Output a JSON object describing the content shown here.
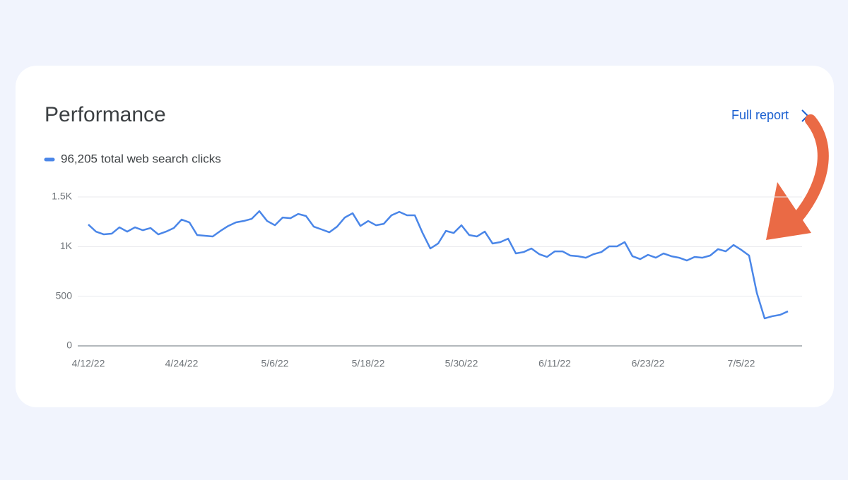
{
  "header": {
    "title": "Performance",
    "link": "Full report"
  },
  "chart_data": {
    "type": "line",
    "categories": [
      "4/12/22",
      null,
      null,
      null,
      null,
      null,
      null,
      null,
      null,
      null,
      null,
      null,
      "4/24/22",
      null,
      null,
      null,
      null,
      null,
      null,
      null,
      null,
      null,
      null,
      null,
      "5/6/22",
      null,
      null,
      null,
      null,
      null,
      null,
      null,
      null,
      null,
      null,
      null,
      "5/18/22",
      null,
      null,
      null,
      null,
      null,
      null,
      null,
      null,
      null,
      null,
      null,
      "5/30/22",
      null,
      null,
      null,
      null,
      null,
      null,
      null,
      null,
      null,
      null,
      null,
      "6/11/22",
      null,
      null,
      null,
      null,
      null,
      null,
      null,
      null,
      null,
      null,
      null,
      "6/23/22",
      null,
      null,
      null,
      null,
      null,
      null,
      null,
      null,
      null,
      null,
      null,
      "7/5/22",
      null,
      null,
      null,
      null,
      null,
      null
    ],
    "series": [
      {
        "name": "96,205 total web search clicks",
        "color": "#4a86e8",
        "values": [
          1222,
          1150,
          1123,
          1130,
          1194,
          1151,
          1194,
          1165,
          1187,
          1123,
          1151,
          1187,
          1272,
          1244,
          1116,
          1109,
          1102,
          1158,
          1208,
          1244,
          1258,
          1279,
          1357,
          1258,
          1215,
          1293,
          1286,
          1329,
          1308,
          1201,
          1173,
          1144,
          1201,
          1293,
          1336,
          1208,
          1258,
          1215,
          1229,
          1315,
          1350,
          1315,
          1315,
          1137,
          981,
          1031,
          1158,
          1137,
          1215,
          1116,
          1102,
          1151,
          1031,
          1045,
          1080,
          931,
          945,
          981,
          924,
          896,
          952,
          952,
          910,
          903,
          888,
          924,
          945,
          1002,
          1002,
          1045,
          903,
          874,
          917,
          888,
          931,
          903,
          888,
          860,
          896,
          888,
          910,
          974,
          952,
          1016,
          967,
          910,
          533,
          277,
          299,
          313,
          348
        ]
      }
    ],
    "ylim": [
      0,
      1500
    ],
    "yticks": [
      0,
      500,
      {
        "value": 1000,
        "label": "1K"
      },
      {
        "value": 1500,
        "label": "1.5K"
      }
    ],
    "grid": true
  }
}
